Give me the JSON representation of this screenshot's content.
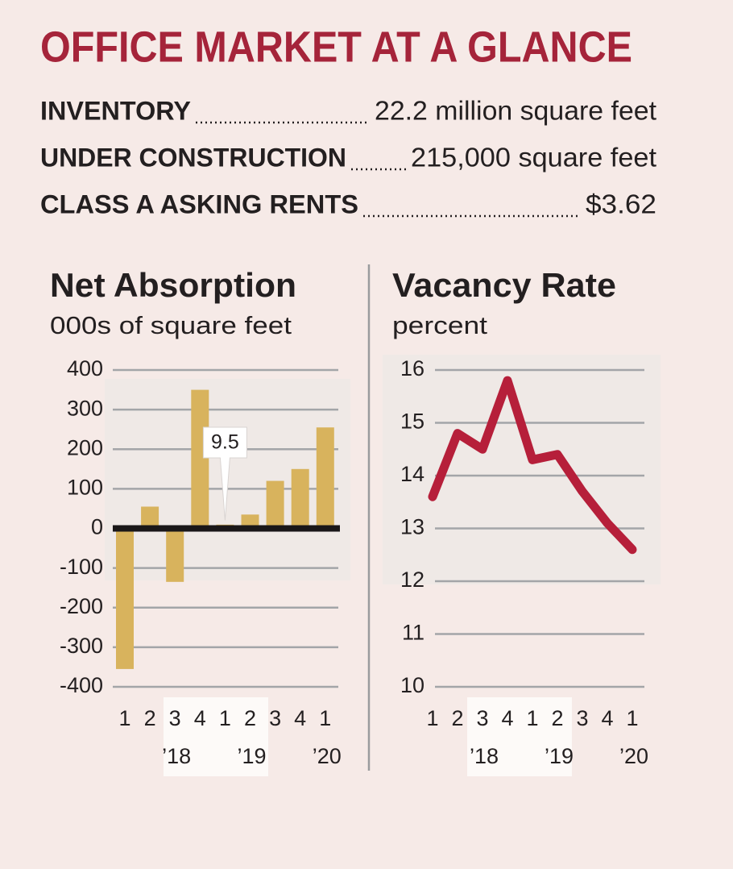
{
  "title": "OFFICE MARKET AT A GLANCE",
  "stats": [
    {
      "label": "INVENTORY",
      "value": "22.2 million square feet"
    },
    {
      "label": "UNDER CONSTRUCTION",
      "value": "215,000 square feet"
    },
    {
      "label": "CLASS A ASKING RENTS",
      "value": "$3.62"
    }
  ],
  "chart_data": [
    {
      "type": "bar",
      "title": "Net Absorption",
      "subtitle": "000s of square feet",
      "categories": [
        "1",
        "2",
        "3",
        "4",
        "1",
        "2",
        "3",
        "4",
        "1"
      ],
      "year_labels": [
        null,
        null,
        "’18",
        null,
        null,
        "’19",
        null,
        null,
        "’20"
      ],
      "values": [
        -355,
        55,
        -135,
        350,
        9.5,
        35,
        120,
        150,
        255
      ],
      "color": "#d8b35d",
      "ylim": [
        -400,
        400
      ],
      "yticks": [
        -400,
        -300,
        -200,
        -100,
        0,
        100,
        200,
        300,
        400
      ],
      "grid": true
    },
    {
      "type": "line",
      "title": "Vacancy Rate",
      "subtitle": "percent",
      "categories": [
        "1",
        "2",
        "3",
        "4",
        "1",
        "2",
        "3",
        "4",
        "1"
      ],
      "year_labels": [
        null,
        null,
        "’18",
        null,
        null,
        "’19",
        null,
        null,
        "’20"
      ],
      "values": [
        13.6,
        14.8,
        14.5,
        15.8,
        14.3,
        14.4,
        13.7,
        13.1,
        12.6
      ],
      "color": "#b61f3a",
      "ylim": [
        10,
        16
      ],
      "yticks": [
        10,
        11,
        12,
        13,
        14,
        15,
        16
      ],
      "grid": true
    }
  ]
}
